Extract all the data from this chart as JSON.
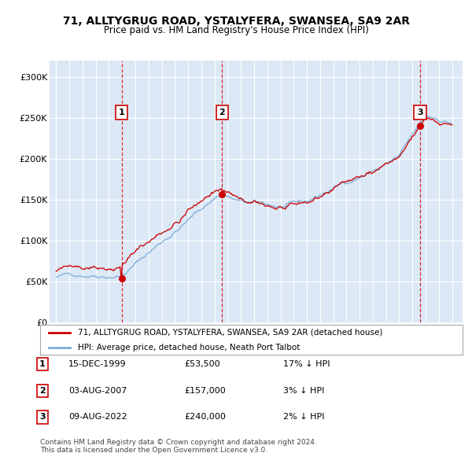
{
  "title": "71, ALLTYGRUG ROAD, YSTALYFERA, SWANSEA, SA9 2AR",
  "subtitle": "Price paid vs. HM Land Registry's House Price Index (HPI)",
  "background_color": "#ffffff",
  "plot_bg_color": "#dce8f5",
  "grid_color": "#ffffff",
  "sale_color": "#cc0000",
  "hpi_color": "#7aabda",
  "transactions": [
    {
      "date_num": 1999.96,
      "price": 53500,
      "label": "1"
    },
    {
      "date_num": 2007.58,
      "price": 157000,
      "label": "2"
    },
    {
      "date_num": 2022.59,
      "price": 240000,
      "label": "3"
    }
  ],
  "transaction_dates": [
    "15-DEC-1999",
    "03-AUG-2007",
    "09-AUG-2022"
  ],
  "transaction_prices": [
    "£53,500",
    "£157,000",
    "£240,000"
  ],
  "transaction_hpi": [
    "17% ↓ HPI",
    "3% ↓ HPI",
    "2% ↓ HPI"
  ],
  "legend_sale": "71, ALLTYGRUG ROAD, YSTALYFERA, SWANSEA, SA9 2AR (detached house)",
  "legend_hpi": "HPI: Average price, detached house, Neath Port Talbot",
  "footer": "Contains HM Land Registry data © Crown copyright and database right 2024.\nThis data is licensed under the Open Government Licence v3.0.",
  "ylim": [
    0,
    320000
  ],
  "xlim_start": 1994.5,
  "xlim_end": 2025.8,
  "yticks": [
    0,
    50000,
    100000,
    150000,
    200000,
    250000,
    300000
  ],
  "ytick_labels": [
    "£0",
    "£50K",
    "£100K",
    "£150K",
    "£200K",
    "£250K",
    "£300K"
  ],
  "xticks": [
    1995,
    1996,
    1997,
    1998,
    1999,
    2000,
    2001,
    2002,
    2003,
    2004,
    2005,
    2006,
    2007,
    2008,
    2009,
    2010,
    2011,
    2012,
    2013,
    2014,
    2015,
    2016,
    2017,
    2018,
    2019,
    2020,
    2021,
    2022,
    2023,
    2024,
    2025
  ]
}
